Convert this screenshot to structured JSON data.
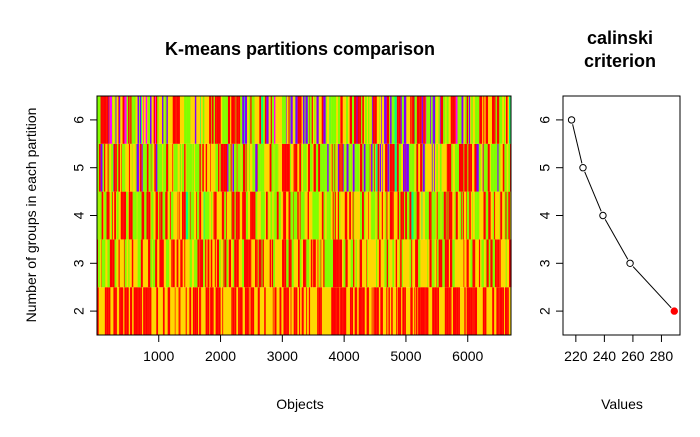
{
  "chart_data": [
    {
      "type": "heatmap",
      "title": "K-means partitions comparison",
      "xlabel": "Objects",
      "ylabel": "Number of groups in each partition",
      "xlim": [
        1,
        6700
      ],
      "x_ticks": [
        "1000",
        "2000",
        "3000",
        "4000",
        "5000",
        "6000"
      ],
      "y_ticks": [
        "2",
        "3",
        "4",
        "5",
        "6"
      ],
      "rows": [
        2,
        3,
        4,
        5,
        6
      ],
      "n_objects": 6700,
      "row_palettes": {
        "2": [
          "#ff0000",
          "#ffd700"
        ],
        "3": [
          "#ff0000",
          "#ffd700",
          "#80ff00"
        ],
        "4": [
          "#ff0000",
          "#ffd700",
          "#80ff00",
          "#00ff80"
        ],
        "5": [
          "#ff0000",
          "#ffd700",
          "#80ff00",
          "#00ff80",
          "#8000ff"
        ],
        "6": [
          "#ff0000",
          "#ffd700",
          "#80ff00",
          "#00ff80",
          "#8000ff",
          "#ff00ff"
        ]
      }
    },
    {
      "type": "line",
      "title_lines": [
        "calinski",
        "criterion"
      ],
      "xlabel": "Values",
      "ylabel": "",
      "x_ticks": [
        "220",
        "240",
        "260",
        "280"
      ],
      "y_ticks": [
        "2",
        "3",
        "4",
        "5",
        "6"
      ],
      "xlim": [
        211,
        293
      ],
      "ylim": [
        1.5,
        6.5
      ],
      "series": [
        {
          "points": [
            {
              "x": 217,
              "y": 6
            },
            {
              "x": 225,
              "y": 5
            },
            {
              "x": 239,
              "y": 4
            },
            {
              "x": 258,
              "y": 3
            },
            {
              "x": 289,
              "y": 2
            }
          ],
          "highlight_index": 4,
          "highlight_color": "#ff0000"
        }
      ]
    }
  ]
}
